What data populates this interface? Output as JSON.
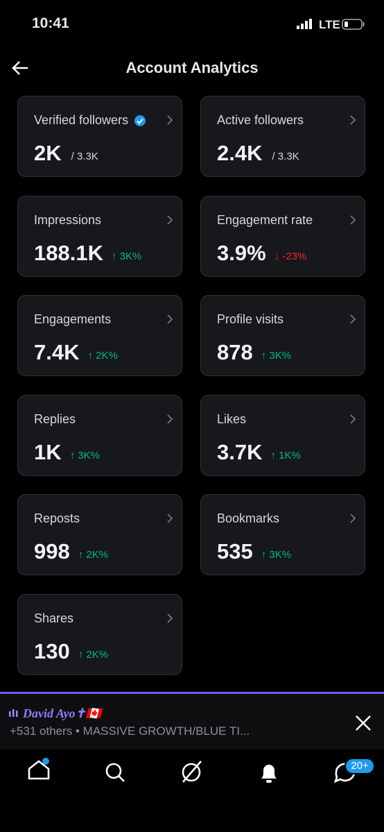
{
  "status_bar": {
    "time": "10:41",
    "network": "LTE"
  },
  "header": {
    "title": "Account Analytics"
  },
  "cards": [
    {
      "label": "Verified followers",
      "value": "2K",
      "detail": "/ 3.3K",
      "verified": true
    },
    {
      "label": "Active followers",
      "value": "2.4K",
      "detail": "/ 3.3K"
    },
    {
      "label": "Impressions",
      "value": "188.1K",
      "change": "↑ 3K%",
      "trend": "up"
    },
    {
      "label": "Engagement rate",
      "value": "3.9%",
      "change": "↓ -23%",
      "trend": "down"
    },
    {
      "label": "Engagements",
      "value": "7.4K",
      "change": "↑ 2K%",
      "trend": "up"
    },
    {
      "label": "Profile visits",
      "value": "878",
      "change": "↑ 3K%",
      "trend": "up"
    },
    {
      "label": "Replies",
      "value": "1K",
      "change": "↑ 3K%",
      "trend": "up"
    },
    {
      "label": "Likes",
      "value": "3.7K",
      "change": "↑ 1K%",
      "trend": "up"
    },
    {
      "label": "Reposts",
      "value": "998",
      "change": "↑ 2K%",
      "trend": "up"
    },
    {
      "label": "Bookmarks",
      "value": "535",
      "change": "↑ 3K%",
      "trend": "up"
    },
    {
      "label": "Shares",
      "value": "130",
      "change": "↑ 2K%",
      "trend": "up"
    }
  ],
  "banner": {
    "name": "David Ayo✝🇨🇦",
    "text": "+531 others • MASSIVE GROWTH/BLUE TI..."
  },
  "nav": {
    "badge": "20+"
  }
}
